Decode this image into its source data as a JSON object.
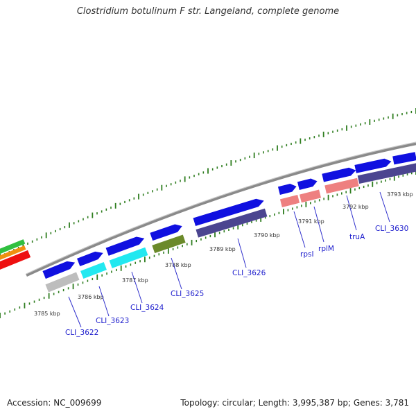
{
  "title": "Clostridium botulinum F str. Langeland, complete genome",
  "accession": "Accession: NC_009699",
  "summary": "Topology: circular; Length: 3,995,387 bp; Genes: 3,781",
  "colors": {
    "backbone": "#8a8a8a",
    "tick": "#2e7d1f",
    "gene_blue": "#1010e0",
    "gene_label": "#1a1acc",
    "leader_line": "#3030cc",
    "kbp_text": "#333333",
    "cds_gray": "#bdbdbd",
    "cds_cyan": "#22e8f0",
    "cds_olive": "#6b8a2a",
    "cds_navy": "#4b4590",
    "cds_pink": "#ee8080",
    "left_green": "#30c040",
    "left_orange": "#f09010",
    "left_red": "#ee1010"
  },
  "kbp_labels": [
    "3785 kbp",
    "3786 kbp",
    "3787 kbp",
    "3788 kbp",
    "3789 kbp",
    "3790 kbp",
    "3791 kbp",
    "3792 kbp",
    "3793 kbp"
  ],
  "gene_labels": [
    "CLI_3622",
    "CLI_3623",
    "CLI_3624",
    "CLI_3625",
    "CLI_3626",
    "rpsI",
    "rplM",
    "truA",
    "CLI_3630"
  ]
}
